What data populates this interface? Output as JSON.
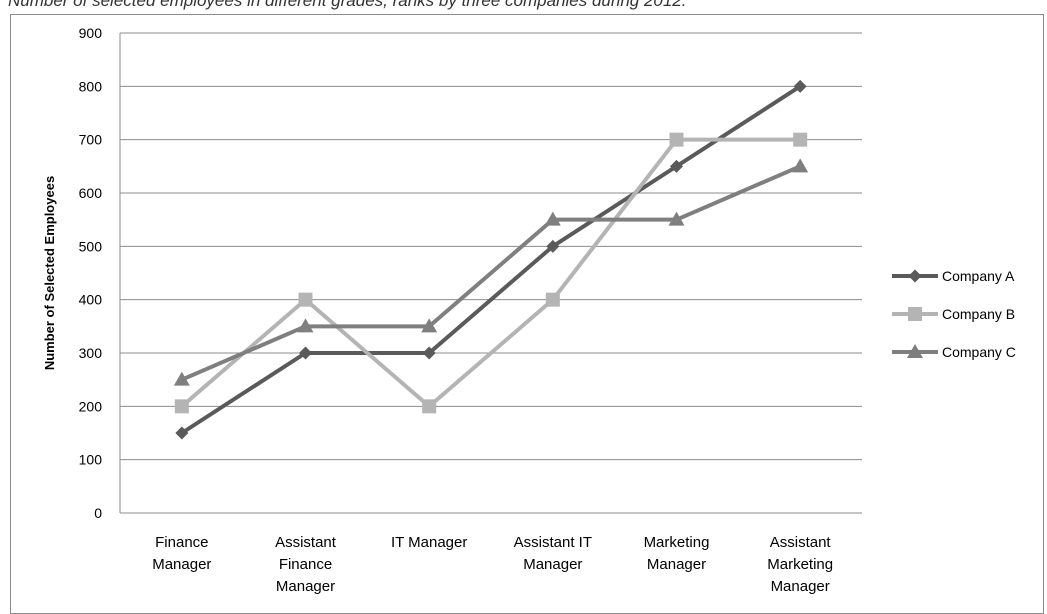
{
  "caption": "Number of selected employees in different grades, ranks by three companies during 2012.",
  "chart_data": {
    "type": "line",
    "title": "Number of selected employees in different grades, ranks by three companies during 2012.",
    "xlabel": "",
    "ylabel": "Number of Selected Employees",
    "ylim": [
      0,
      900
    ],
    "yticks": [
      "0",
      "100",
      "200",
      "300",
      "400",
      "500",
      "600",
      "700",
      "800",
      "900"
    ],
    "grid": true,
    "legend_position": "right",
    "categories": [
      [
        "Finance",
        "Manager"
      ],
      [
        "Assistant",
        "Finance",
        "Manager"
      ],
      [
        "IT Manager"
      ],
      [
        "Assistant IT",
        "Manager"
      ],
      [
        "Marketing",
        "Manager"
      ],
      [
        "Assistant",
        "Marketing",
        "Manager"
      ]
    ],
    "series": [
      {
        "name": "Company A",
        "color": "#5a5a5a",
        "marker": "diamond",
        "values": [
          150,
          300,
          300,
          500,
          650,
          800
        ]
      },
      {
        "name": "Company B",
        "color": "#b4b4b4",
        "marker": "square",
        "values": [
          200,
          400,
          200,
          400,
          700,
          700
        ]
      },
      {
        "name": "Company C",
        "color": "#7f7f7f",
        "marker": "triangle",
        "values": [
          250,
          350,
          350,
          550,
          550,
          650
        ]
      }
    ]
  }
}
